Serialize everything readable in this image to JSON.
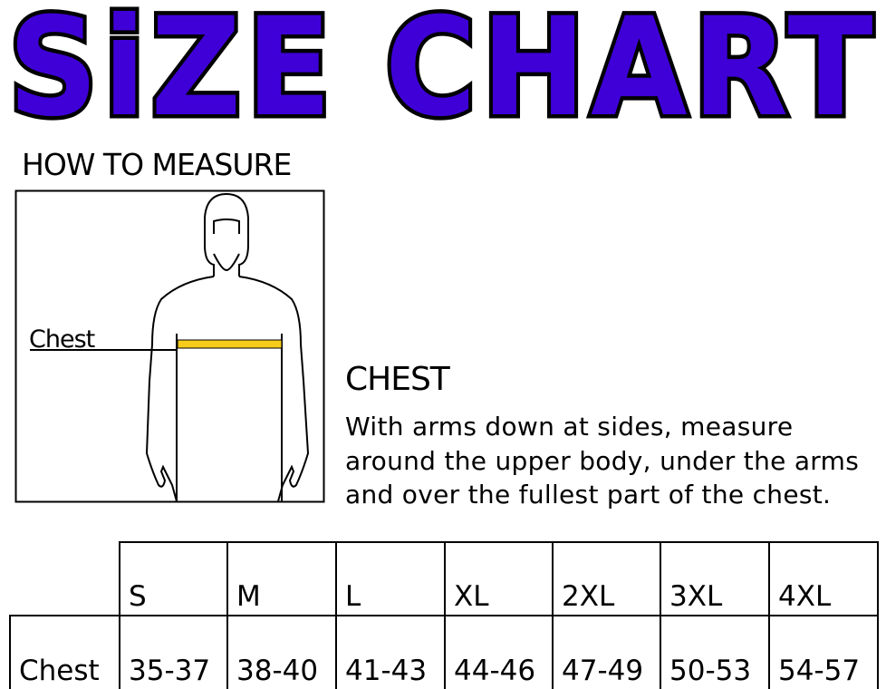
{
  "title": "SiZE CHART",
  "how_to_measure": "HOW TO MEASURE",
  "figure": {
    "label": "Chest",
    "tape_color": "#f5cc1b"
  },
  "chest_section": {
    "heading": "CHEST",
    "lines": [
      "With arms down at sides, measure",
      "around the upper body, under the arms",
      "and over the fullest part of the chest."
    ]
  },
  "table": {
    "sizes": [
      "S",
      "M",
      "L",
      "XL",
      "2XL",
      "3XL",
      "4XL"
    ],
    "row_label": "Chest",
    "values": [
      "35-37",
      "38-40",
      "41-43",
      "44-46",
      "47-49",
      "50-53",
      "54-57"
    ]
  },
  "colors": {
    "title_fill": "#3f00d8"
  }
}
